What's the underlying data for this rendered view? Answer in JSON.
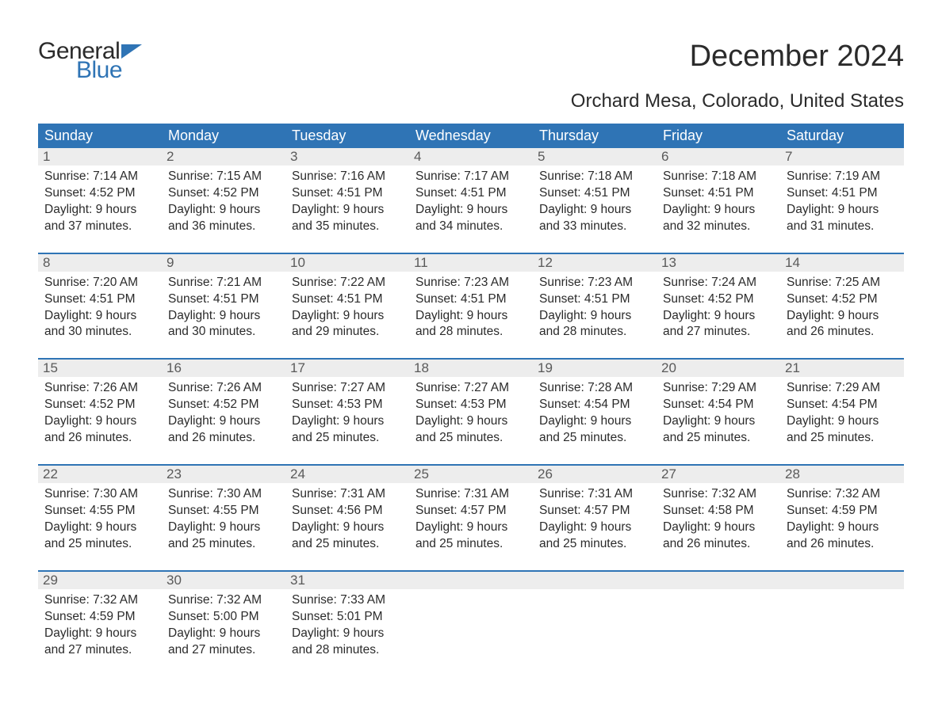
{
  "logo": {
    "general": "General",
    "blue": "Blue",
    "flag_color": "#2f74b5"
  },
  "title": "December 2024",
  "subtitle": "Orchard Mesa, Colorado, United States",
  "colors": {
    "header_bg": "#2f74b5",
    "header_text": "#ffffff",
    "daynum_bg": "#ededed",
    "daynum_text": "#5a5a5a",
    "body_text": "#2b2b2b",
    "rule": "#2f74b5",
    "page_bg": "#ffffff"
  },
  "day_headers": [
    "Sunday",
    "Monday",
    "Tuesday",
    "Wednesday",
    "Thursday",
    "Friday",
    "Saturday"
  ],
  "weeks": [
    [
      {
        "n": "1",
        "sr": "Sunrise: 7:14 AM",
        "ss": "Sunset: 4:52 PM",
        "d1": "Daylight: 9 hours",
        "d2": "and 37 minutes."
      },
      {
        "n": "2",
        "sr": "Sunrise: 7:15 AM",
        "ss": "Sunset: 4:52 PM",
        "d1": "Daylight: 9 hours",
        "d2": "and 36 minutes."
      },
      {
        "n": "3",
        "sr": "Sunrise: 7:16 AM",
        "ss": "Sunset: 4:51 PM",
        "d1": "Daylight: 9 hours",
        "d2": "and 35 minutes."
      },
      {
        "n": "4",
        "sr": "Sunrise: 7:17 AM",
        "ss": "Sunset: 4:51 PM",
        "d1": "Daylight: 9 hours",
        "d2": "and 34 minutes."
      },
      {
        "n": "5",
        "sr": "Sunrise: 7:18 AM",
        "ss": "Sunset: 4:51 PM",
        "d1": "Daylight: 9 hours",
        "d2": "and 33 minutes."
      },
      {
        "n": "6",
        "sr": "Sunrise: 7:18 AM",
        "ss": "Sunset: 4:51 PM",
        "d1": "Daylight: 9 hours",
        "d2": "and 32 minutes."
      },
      {
        "n": "7",
        "sr": "Sunrise: 7:19 AM",
        "ss": "Sunset: 4:51 PM",
        "d1": "Daylight: 9 hours",
        "d2": "and 31 minutes."
      }
    ],
    [
      {
        "n": "8",
        "sr": "Sunrise: 7:20 AM",
        "ss": "Sunset: 4:51 PM",
        "d1": "Daylight: 9 hours",
        "d2": "and 30 minutes."
      },
      {
        "n": "9",
        "sr": "Sunrise: 7:21 AM",
        "ss": "Sunset: 4:51 PM",
        "d1": "Daylight: 9 hours",
        "d2": "and 30 minutes."
      },
      {
        "n": "10",
        "sr": "Sunrise: 7:22 AM",
        "ss": "Sunset: 4:51 PM",
        "d1": "Daylight: 9 hours",
        "d2": "and 29 minutes."
      },
      {
        "n": "11",
        "sr": "Sunrise: 7:23 AM",
        "ss": "Sunset: 4:51 PM",
        "d1": "Daylight: 9 hours",
        "d2": "and 28 minutes."
      },
      {
        "n": "12",
        "sr": "Sunrise: 7:23 AM",
        "ss": "Sunset: 4:51 PM",
        "d1": "Daylight: 9 hours",
        "d2": "and 28 minutes."
      },
      {
        "n": "13",
        "sr": "Sunrise: 7:24 AM",
        "ss": "Sunset: 4:52 PM",
        "d1": "Daylight: 9 hours",
        "d2": "and 27 minutes."
      },
      {
        "n": "14",
        "sr": "Sunrise: 7:25 AM",
        "ss": "Sunset: 4:52 PM",
        "d1": "Daylight: 9 hours",
        "d2": "and 26 minutes."
      }
    ],
    [
      {
        "n": "15",
        "sr": "Sunrise: 7:26 AM",
        "ss": "Sunset: 4:52 PM",
        "d1": "Daylight: 9 hours",
        "d2": "and 26 minutes."
      },
      {
        "n": "16",
        "sr": "Sunrise: 7:26 AM",
        "ss": "Sunset: 4:52 PM",
        "d1": "Daylight: 9 hours",
        "d2": "and 26 minutes."
      },
      {
        "n": "17",
        "sr": "Sunrise: 7:27 AM",
        "ss": "Sunset: 4:53 PM",
        "d1": "Daylight: 9 hours",
        "d2": "and 25 minutes."
      },
      {
        "n": "18",
        "sr": "Sunrise: 7:27 AM",
        "ss": "Sunset: 4:53 PM",
        "d1": "Daylight: 9 hours",
        "d2": "and 25 minutes."
      },
      {
        "n": "19",
        "sr": "Sunrise: 7:28 AM",
        "ss": "Sunset: 4:54 PM",
        "d1": "Daylight: 9 hours",
        "d2": "and 25 minutes."
      },
      {
        "n": "20",
        "sr": "Sunrise: 7:29 AM",
        "ss": "Sunset: 4:54 PM",
        "d1": "Daylight: 9 hours",
        "d2": "and 25 minutes."
      },
      {
        "n": "21",
        "sr": "Sunrise: 7:29 AM",
        "ss": "Sunset: 4:54 PM",
        "d1": "Daylight: 9 hours",
        "d2": "and 25 minutes."
      }
    ],
    [
      {
        "n": "22",
        "sr": "Sunrise: 7:30 AM",
        "ss": "Sunset: 4:55 PM",
        "d1": "Daylight: 9 hours",
        "d2": "and 25 minutes."
      },
      {
        "n": "23",
        "sr": "Sunrise: 7:30 AM",
        "ss": "Sunset: 4:55 PM",
        "d1": "Daylight: 9 hours",
        "d2": "and 25 minutes."
      },
      {
        "n": "24",
        "sr": "Sunrise: 7:31 AM",
        "ss": "Sunset: 4:56 PM",
        "d1": "Daylight: 9 hours",
        "d2": "and 25 minutes."
      },
      {
        "n": "25",
        "sr": "Sunrise: 7:31 AM",
        "ss": "Sunset: 4:57 PM",
        "d1": "Daylight: 9 hours",
        "d2": "and 25 minutes."
      },
      {
        "n": "26",
        "sr": "Sunrise: 7:31 AM",
        "ss": "Sunset: 4:57 PM",
        "d1": "Daylight: 9 hours",
        "d2": "and 25 minutes."
      },
      {
        "n": "27",
        "sr": "Sunrise: 7:32 AM",
        "ss": "Sunset: 4:58 PM",
        "d1": "Daylight: 9 hours",
        "d2": "and 26 minutes."
      },
      {
        "n": "28",
        "sr": "Sunrise: 7:32 AM",
        "ss": "Sunset: 4:59 PM",
        "d1": "Daylight: 9 hours",
        "d2": "and 26 minutes."
      }
    ],
    [
      {
        "n": "29",
        "sr": "Sunrise: 7:32 AM",
        "ss": "Sunset: 4:59 PM",
        "d1": "Daylight: 9 hours",
        "d2": "and 27 minutes."
      },
      {
        "n": "30",
        "sr": "Sunrise: 7:32 AM",
        "ss": "Sunset: 5:00 PM",
        "d1": "Daylight: 9 hours",
        "d2": "and 27 minutes."
      },
      {
        "n": "31",
        "sr": "Sunrise: 7:33 AM",
        "ss": "Sunset: 5:01 PM",
        "d1": "Daylight: 9 hours",
        "d2": "and 28 minutes."
      },
      null,
      null,
      null,
      null
    ]
  ]
}
